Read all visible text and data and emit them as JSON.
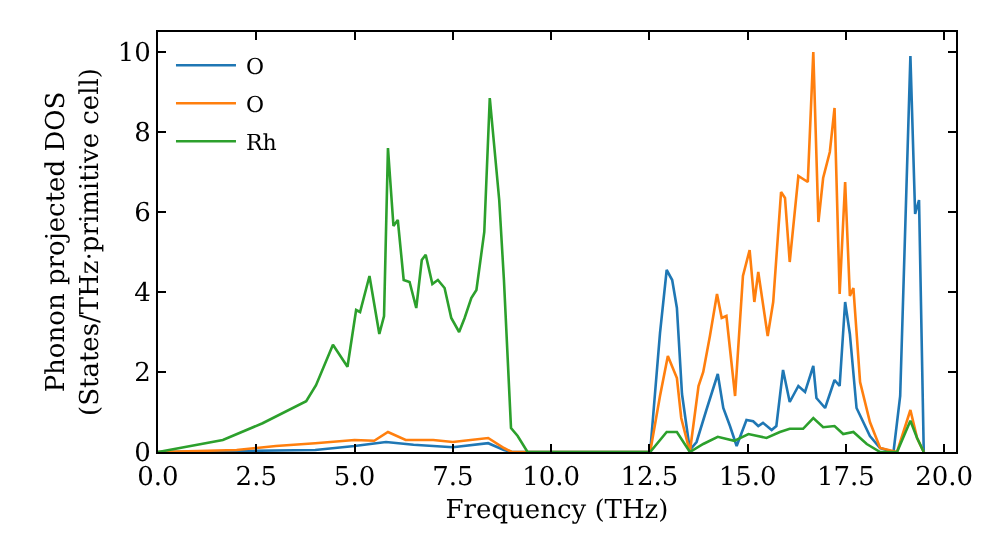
{
  "chart_data": {
    "type": "line",
    "xlabel": "Frequency (THz)",
    "ylabel": "Phonon projected DOS\n(States/THz·primitive cell)",
    "xlim": [
      0,
      20.3
    ],
    "ylim": [
      0,
      10.5
    ],
    "xticks": [
      {
        "value": 0,
        "label": "0.0"
      },
      {
        "value": 2.5,
        "label": "2.5"
      },
      {
        "value": 5,
        "label": "5.0"
      },
      {
        "value": 7.5,
        "label": "7.5"
      },
      {
        "value": 10,
        "label": "10.0"
      },
      {
        "value": 12.5,
        "label": "12.5"
      },
      {
        "value": 15,
        "label": "15.0"
      },
      {
        "value": 17.5,
        "label": "17.5"
      },
      {
        "value": 20,
        "label": "20.0"
      }
    ],
    "yticks": [
      0,
      2,
      4,
      6,
      8,
      10
    ],
    "grid": false,
    "legend": "top left",
    "marker": "none",
    "line_style": "solid",
    "series": [
      {
        "name": "O",
        "color": "#1f77b4",
        "x": [
          0,
          4,
          5,
          5.8,
          6.5,
          7.5,
          8.4,
          8.8,
          9,
          12.52,
          12.77,
          12.94,
          13.08,
          13.2,
          13.33,
          13.53,
          13.7,
          13.95,
          14.24,
          14.38,
          14.55,
          14.72,
          14.97,
          15.14,
          15.27,
          15.39,
          15.61,
          15.73,
          15.9,
          16.07,
          16.29,
          16.46,
          16.67,
          16.75,
          16.97,
          17.21,
          17.34,
          17.48,
          17.6,
          17.77,
          18.11,
          18.37,
          18.71,
          18.88,
          19.14,
          19.26,
          19.36,
          19.48
        ],
        "values": [
          0,
          0.05,
          0.15,
          0.25,
          0.18,
          0.12,
          0.22,
          0.05,
          0,
          0,
          2.97,
          4.55,
          4.3,
          3.6,
          1.45,
          0.05,
          0.25,
          1.05,
          1.95,
          1.1,
          0.65,
          0.15,
          0.8,
          0.77,
          0.65,
          0.73,
          0.55,
          0.65,
          2.05,
          1.25,
          1.65,
          1.5,
          2.15,
          1.35,
          1.1,
          1.8,
          1.65,
          3.75,
          2.95,
          1.1,
          0.4,
          0.1,
          0,
          1.4,
          9.9,
          5.95,
          6.3,
          0
        ]
      },
      {
        "name": "O",
        "color": "#ff7f0e",
        "x": [
          0,
          2,
          3,
          4,
          5,
          5.5,
          5.85,
          6.3,
          7,
          7.5,
          8.4,
          8.8,
          9,
          12.52,
          12.77,
          12.97,
          13.2,
          13.31,
          13.53,
          13.75,
          13.87,
          14.04,
          14.22,
          14.34,
          14.46,
          14.68,
          14.88,
          15.05,
          15.17,
          15.27,
          15.51,
          15.65,
          15.85,
          15.95,
          16.07,
          16.29,
          16.53,
          16.67,
          16.8,
          16.92,
          17.09,
          17.21,
          17.34,
          17.48,
          17.6,
          17.69,
          17.86,
          18.11,
          18.37,
          18.8,
          19.14,
          19.31,
          19.48
        ],
        "values": [
          0,
          0.05,
          0.15,
          0.22,
          0.3,
          0.28,
          0.5,
          0.3,
          0.3,
          0.25,
          0.35,
          0.1,
          0,
          0,
          1.4,
          2.4,
          1.85,
          0.85,
          0,
          1.65,
          2,
          2.9,
          3.95,
          3.35,
          3.4,
          1.4,
          4.4,
          5.05,
          3.75,
          4.5,
          2.9,
          3.75,
          6.5,
          6.35,
          4.75,
          6.9,
          6.75,
          10,
          5.75,
          6.85,
          7.5,
          8.6,
          3.95,
          6.75,
          3.9,
          4.1,
          1.75,
          0.75,
          0.1,
          0,
          1.05,
          0.35,
          0
        ]
      },
      {
        "name": "Rh",
        "color": "#2ca02c",
        "x": [
          0,
          1.65,
          2.66,
          3.77,
          4.02,
          4.45,
          4.82,
          5.04,
          5.14,
          5.38,
          5.63,
          5.75,
          5.85,
          5.99,
          6.1,
          6.25,
          6.4,
          6.57,
          6.71,
          6.81,
          6.98,
          7.12,
          7.29,
          7.46,
          7.66,
          7.8,
          7.97,
          8.1,
          8.3,
          8.44,
          8.68,
          8.8,
          8.98,
          9.15,
          9.4,
          12.52,
          12.94,
          13.2,
          13.53,
          13.87,
          14.24,
          14.66,
          15.02,
          15.48,
          15.82,
          16.07,
          16.41,
          16.67,
          16.92,
          17.21,
          17.43,
          17.69,
          18.03,
          18.37,
          18.8,
          19.14,
          19.31,
          19.48
        ],
        "values": [
          0,
          0.3,
          0.72,
          1.27,
          1.67,
          2.68,
          2.13,
          3.55,
          3.5,
          4.4,
          2.95,
          3.4,
          7.6,
          5.65,
          5.8,
          4.3,
          4.25,
          3.6,
          4.8,
          4.93,
          4.2,
          4.3,
          4.1,
          3.35,
          3,
          3.35,
          3.85,
          4.05,
          5.5,
          8.85,
          6.3,
          4.3,
          0.6,
          0.4,
          0,
          0,
          0.5,
          0.5,
          0,
          0.2,
          0.38,
          0.28,
          0.45,
          0.35,
          0.5,
          0.58,
          0.58,
          0.85,
          0.62,
          0.65,
          0.45,
          0.5,
          0.2,
          0,
          0,
          0.78,
          0.35,
          0
        ]
      }
    ]
  }
}
